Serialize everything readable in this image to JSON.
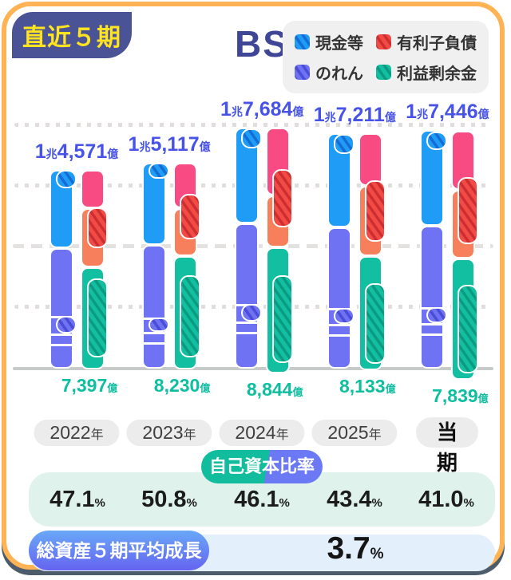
{
  "frame": {
    "badge_label": "直近５期",
    "title": "BS"
  },
  "legend": {
    "items": [
      {
        "key": "cash",
        "label": "現金等"
      },
      {
        "key": "debt",
        "label": "有利子負債"
      },
      {
        "key": "goodwill",
        "label": "のれん"
      },
      {
        "key": "retained",
        "label": "利益剰余金"
      }
    ]
  },
  "colors": {
    "cash": "#1E9CF6",
    "goodwill": "#6E72F3",
    "other_liabilities": "#F84B84",
    "interest_debt_solid": "#F87F5B",
    "interest_debt_hatch": "#F24B45",
    "retained": "#12BFA0",
    "border_accent": "#FFB355",
    "badge_bg": "#4B5397",
    "badge_text": "#FFE41F",
    "title_navy": "#3E4695",
    "total_label_blue": "#4753E6",
    "retained_label_teal": "#0EBEA0"
  },
  "chart_data": {
    "type": "bar",
    "unit": "億円",
    "subtype": "paired stacked bars: left = assets (cash etc. + goodwill), right = liabilities & equity (other + interest-bearing debt + retained earnings); hatched blocks mark legend items; segment values estimated from bar geometry",
    "ylim_oku": [
      0,
      18000
    ],
    "periods": [
      {
        "label": "2022年",
        "pill_main": "2022",
        "pill_suffix": "年",
        "total_label": "1兆4,571億",
        "tb1": "1",
        "tu1": "兆",
        "tb2": "4,571",
        "tu2": "億",
        "total_oku": 14571,
        "retained_num": "7,397",
        "retained_unit": "億",
        "left_segments": {
          "cash_etc": 5740,
          "goodwill": 8725
        },
        "right_segments": {
          "other_liabilities": 2810,
          "interest_debt": 4330,
          "retained": 7320
        },
        "below_baseline_oku": 175,
        "overlays": {
          "cash": [
            13100,
            14470
          ],
          "goodwill": [
            2460,
            3750
          ],
          "debt": [
            8730,
            11710
          ],
          "retained": [
            700,
            6500
          ]
        }
      },
      {
        "label": "2023年",
        "pill_main": "2023",
        "pill_suffix": "年",
        "total_label": "1兆5,117億",
        "tb1": "1",
        "tu1": "兆",
        "tb2": "5,117",
        "tu2": "億",
        "total_oku": 15117,
        "retained_num": "8,230",
        "retained_unit": "億",
        "left_segments": {
          "cash_etc": 6030,
          "goodwill": 8960
        },
        "right_segments": {
          "other_liabilities": 3340,
          "interest_debt": 3515,
          "retained": 8140
        },
        "below_baseline_oku": 175,
        "overlays": {
          "cash": [
            13820,
            14990
          ],
          "goodwill": [
            2580,
            3630
          ],
          "debt": [
            9370,
            12710
          ],
          "retained": [
            700,
            6730
          ]
        }
      },
      {
        "label": "2024年",
        "pill_main": "2024",
        "pill_suffix": "年",
        "total_label": "1兆7,684億",
        "tb1": "1",
        "tu1": "兆",
        "tb2": "7,684",
        "tu2": "億",
        "total_oku": 17684,
        "retained_num": "8,844",
        "retained_unit": "億",
        "left_segments": {
          "cash_etc": 7025,
          "goodwill": 10540
        },
        "right_segments": {
          "other_liabilities": 4980,
          "interest_debt": 3805,
          "retained": 8785
        },
        "below_baseline_oku": 470,
        "overlays": {
          "cash": [
            16050,
            17510
          ],
          "goodwill": [
            3340,
            4630
          ],
          "debt": [
            10250,
            14520
          ],
          "retained": [
            290,
            6730
          ]
        }
      },
      {
        "label": "2025年",
        "pill_main": "2025",
        "pill_suffix": "年",
        "total_label": "1兆7,211億",
        "tb1": "1",
        "tu1": "兆",
        "tb2": "7,211",
        "tu2": "億",
        "total_oku": 17211,
        "retained_num": "8,133",
        "retained_unit": "億",
        "left_segments": {
          "cash_etc": 6910,
          "goodwill": 10250
        },
        "right_segments": {
          "other_liabilities": 3865,
          "interest_debt": 5150,
          "retained": 8140
        },
        "below_baseline_oku": 235,
        "overlays": {
          "cash": [
            15640,
            17100
          ],
          "goodwill": [
            3160,
            4330
          ],
          "debt": [
            9190,
            13700
          ],
          "retained": [
            230,
            6150
          ]
        }
      },
      {
        "label": "当期",
        "pill_main": "当期",
        "pill_suffix": "",
        "total_label": "1兆7,446億",
        "tb1": "1",
        "tu1": "兆",
        "tb2": "7,446",
        "tu2": "億",
        "total_oku": 17446,
        "retained_num": "7,839",
        "retained_unit": "億",
        "left_segments": {
          "cash_etc": 7025,
          "goodwill": 10365
        },
        "right_segments": {
          "other_liabilities": 4335,
          "interest_debt": 5035,
          "retained": 7965
        },
        "below_baseline_oku": 940,
        "overlays": {
          "cash": [
            15930,
            17280
          ],
          "goodwill": [
            3220,
            4390
          ],
          "debt": [
            9020,
            13940
          ],
          "retained": [
            -470,
            6030
          ]
        }
      }
    ]
  },
  "equity_section": {
    "label": "自己資本比率",
    "values": [
      "47.1",
      "50.8",
      "46.1",
      "43.4",
      "41.0"
    ],
    "unit": "%"
  },
  "growth_section": {
    "label": "総資産５期平均成長率",
    "value": "3.7",
    "unit": "%"
  }
}
